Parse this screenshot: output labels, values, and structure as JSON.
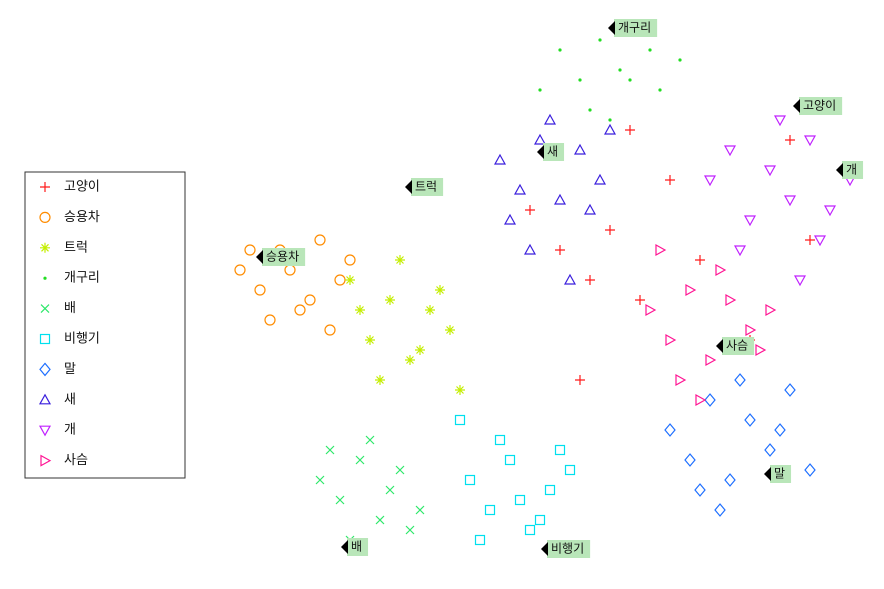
{
  "chart_data": {
    "type": "scatter",
    "xlim": [
      0,
      64
    ],
    "ylim": [
      0,
      57
    ],
    "series": [
      {
        "name": "고양이",
        "color": "#ff1a1a",
        "marker": "plus",
        "x": [
          30,
          33,
          36,
          38,
          41,
          44,
          47,
          52,
          56,
          58,
          35,
          40
        ],
        "values": [
          37,
          33,
          30,
          35,
          28,
          40,
          32,
          24,
          44,
          34,
          20,
          45
        ]
      },
      {
        "name": "승용차",
        "color": "#ff8c00",
        "marker": "circle",
        "x": [
          1,
          3,
          5,
          7,
          9,
          11,
          4,
          6,
          8,
          2,
          10,
          12
        ],
        "values": [
          31,
          29,
          33,
          27,
          34,
          30,
          26,
          31,
          28,
          33,
          25,
          32
        ]
      },
      {
        "name": "트럭",
        "color": "#c4ee00",
        "marker": "star",
        "x": [
          12,
          14,
          16,
          18,
          20,
          22,
          15,
          17,
          19,
          13,
          21,
          23
        ],
        "values": [
          30,
          24,
          28,
          22,
          27,
          25,
          20,
          32,
          23,
          27,
          29,
          19
        ]
      },
      {
        "name": "개구리",
        "color": "#22dd22",
        "marker": "point",
        "x": [
          33,
          35,
          37,
          39,
          41,
          43,
          45,
          36,
          40,
          42,
          38,
          31
        ],
        "values": [
          53,
          50,
          54,
          51,
          55,
          49,
          52,
          47,
          50,
          53,
          46,
          49
        ]
      },
      {
        "name": "배",
        "color": "#2ee86a",
        "marker": "x",
        "x": [
          9,
          11,
          13,
          15,
          17,
          19,
          12,
          14,
          16,
          10,
          18,
          13
        ],
        "values": [
          10,
          8,
          12,
          6,
          11,
          7,
          4,
          14,
          9,
          13,
          5,
          3
        ]
      },
      {
        "name": "비행기",
        "color": "#00e0ee",
        "marker": "square",
        "x": [
          24,
          26,
          28,
          30,
          32,
          34,
          25,
          27,
          31,
          29,
          33,
          23
        ],
        "values": [
          10,
          7,
          12,
          5,
          9,
          11,
          4,
          14,
          6,
          8,
          13,
          16
        ]
      },
      {
        "name": "말",
        "color": "#1e6fff",
        "marker": "diamond",
        "x": [
          44,
          46,
          48,
          50,
          52,
          54,
          56,
          58,
          47,
          51,
          55,
          49
        ],
        "values": [
          15,
          12,
          18,
          10,
          16,
          13,
          19,
          11,
          9,
          20,
          15,
          7
        ]
      },
      {
        "name": "새",
        "color": "#3a1fdd",
        "marker": "triangle-up",
        "x": [
          27,
          29,
          31,
          33,
          35,
          37,
          28,
          32,
          36,
          30,
          34,
          38
        ],
        "values": [
          42,
          39,
          44,
          38,
          43,
          40,
          36,
          46,
          37,
          33,
          30,
          45
        ]
      },
      {
        "name": "개",
        "color": "#c020ff",
        "marker": "triangle-down",
        "x": [
          48,
          50,
          52,
          54,
          56,
          58,
          60,
          62,
          51,
          55,
          59,
          57
        ],
        "values": [
          40,
          43,
          36,
          41,
          38,
          44,
          37,
          40,
          33,
          46,
          34,
          30
        ]
      },
      {
        "name": "사슴",
        "color": "#ff1493",
        "marker": "triangle-right",
        "x": [
          42,
          44,
          46,
          48,
          50,
          52,
          54,
          45,
          49,
          53,
          43,
          47
        ],
        "values": [
          27,
          24,
          29,
          22,
          28,
          25,
          27,
          20,
          31,
          23,
          33,
          18
        ]
      }
    ],
    "annotations": [
      "개구리",
      "고양이",
      "새",
      "트럭",
      "개",
      "승용차",
      "사슴",
      "말",
      "배",
      "비행기"
    ]
  }
}
